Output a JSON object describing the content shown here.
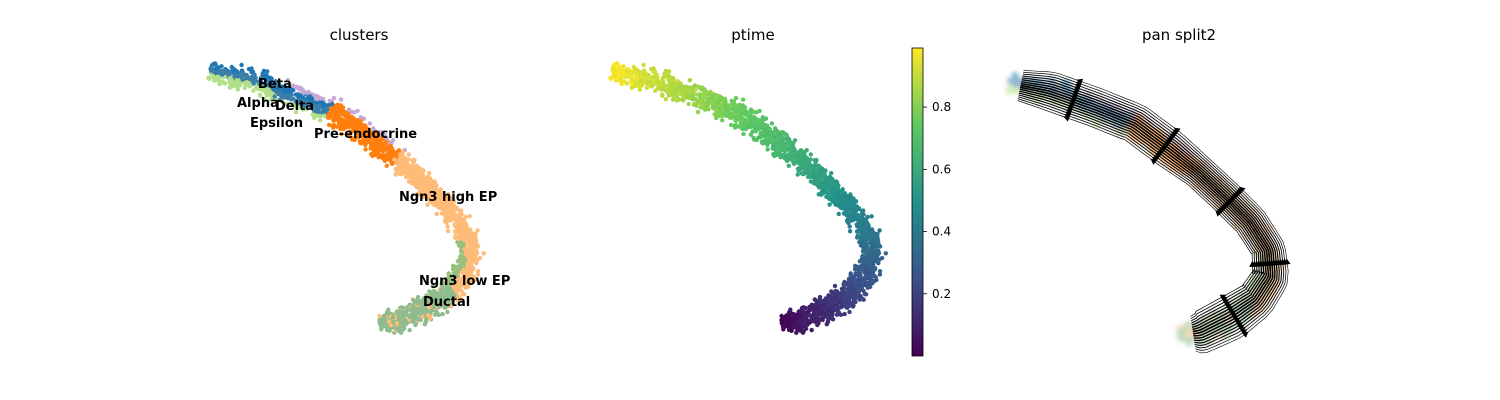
{
  "chart_data": [
    {
      "type": "scatter",
      "title": "clusters",
      "legend": "on data",
      "colors": {
        "Beta": "#b2df8a",
        "Alpha": "#1f77b4",
        "Delta": "#3b7fa8",
        "Epsilon": "#c4a9d6",
        "Pre-endocrine": "#ff7f0e",
        "Ngn3 high EP": "#ffbb78",
        "Ngn3 low EP": "#98bf7c",
        "Ductal": "#8fbc8f"
      },
      "labels": [
        {
          "text": "Beta"
        },
        {
          "text": "Alpha"
        },
        {
          "text": "Delta"
        },
        {
          "text": "Epsilon"
        },
        {
          "text": "Pre-endocrine"
        },
        {
          "text": "Ngn3 high EP"
        },
        {
          "text": "Ngn3 low EP"
        },
        {
          "text": "Ductal"
        }
      ]
    },
    {
      "type": "scatter",
      "title": "ptime",
      "colormap": "viridis",
      "colorbar": {
        "ticks": [
          0.2,
          0.4,
          0.6,
          0.8
        ],
        "tick_labels": [
          "0.2",
          "0.4",
          "0.6",
          "0.8"
        ],
        "range": [
          0.0,
          0.99
        ]
      }
    },
    {
      "type": "scatter",
      "title": "pan split2",
      "overlay": "streamlines",
      "stream_color": "#000000"
    }
  ]
}
